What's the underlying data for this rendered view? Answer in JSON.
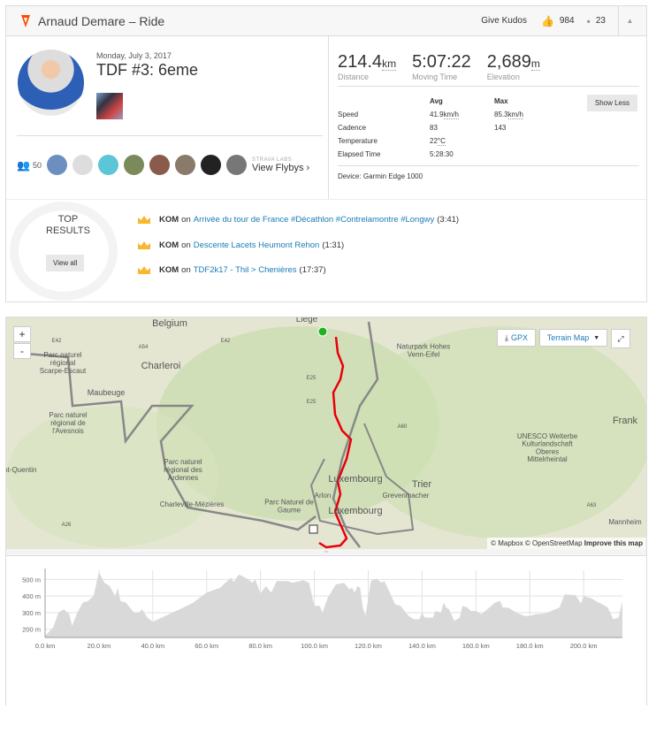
{
  "header": {
    "title": "Arnaud Demare – Ride",
    "give_kudos": "Give Kudos",
    "kudos_count": "984",
    "comment_count": "23",
    "brand_color": "#fc4c02"
  },
  "activity": {
    "date": "Monday, July 3, 2017",
    "title": "TDF #3: 6eme"
  },
  "flybys": {
    "athlete_count": "50",
    "labs": "STRAVA LABS",
    "view_label": "View Flybys"
  },
  "stats": {
    "primary": [
      {
        "value": "214.4",
        "unit": "km",
        "label": "Distance"
      },
      {
        "value": "5:07:22",
        "unit": "",
        "label": "Moving Time"
      },
      {
        "value": "2,689",
        "unit": "m",
        "label": "Elevation"
      }
    ],
    "col_avg": "Avg",
    "col_max": "Max",
    "rows": [
      {
        "label": "Speed",
        "avg": "41.9",
        "avg_unit": "km/h",
        "max": "85.3",
        "max_unit": "km/h"
      },
      {
        "label": "Cadence",
        "avg": "83",
        "avg_unit": "",
        "max": "143",
        "max_unit": ""
      },
      {
        "label": "Temperature",
        "avg": "22",
        "avg_unit": "°C",
        "max": "",
        "max_unit": ""
      },
      {
        "label": "Elapsed Time",
        "avg": "5:28:30",
        "avg_unit": "",
        "max": "",
        "max_unit": ""
      }
    ],
    "show_less": "Show Less",
    "device": "Device: Garmin Edge 1000"
  },
  "top_results": {
    "title_line1": "TOP",
    "title_line2": "RESULTS",
    "view_all": "View all",
    "items": [
      {
        "badge": "KOM",
        "on": "on",
        "segment": "Arrivée du tour de France #Décathlon #Contrelamontre #Longwy",
        "time": "(3:41)"
      },
      {
        "badge": "KOM",
        "on": "on",
        "segment": "Descente Lacets Heumont Rehon",
        "time": "(1:31)"
      },
      {
        "badge": "KOM",
        "on": "on",
        "segment": "TDF2k17 - Thil > Chenières",
        "time": "(17:37)"
      }
    ]
  },
  "map": {
    "zoom_in": "+",
    "zoom_out": "-",
    "gpx": "GPX",
    "map_type": "Terrain Map",
    "attribution_mapbox": "© Mapbox",
    "attribution_osm": "© OpenStreetMap",
    "improve": "Improve this map",
    "route_color": "#e8000b",
    "labels": [
      "Belgium",
      "Liège",
      "Charleroi",
      "Maubeuge",
      "Parc naturel régional de l'Avesnois",
      "Parc naturel régional des Ardennes",
      "Charleville-Mézières",
      "Parc Naturel de Gaume",
      "Luxembourg",
      "Luxembourg",
      "Arlon",
      "Grevenmacher",
      "Trier",
      "Naturpark Hohes Venn-Eifel",
      "UNESCO Welterbe Kulturlandschaft Oberes Mittelrheintal",
      "Frank",
      "Saint-Quentin",
      "Mannheim",
      "Parc naturel régional Scarpe-Escaut",
      "E42",
      "E42",
      "A54",
      "E25",
      "E25",
      "A60",
      "A63",
      "A26"
    ]
  },
  "chart_data": {
    "type": "area",
    "xlabel": "",
    "ylabel": "",
    "xlim": [
      0,
      214.4
    ],
    "ylim": [
      150,
      555
    ],
    "x_ticks": [
      "0.0 km",
      "20.0 km",
      "40.0 km",
      "60.0 km",
      "80.0 km",
      "100.0 km",
      "120.0 km",
      "140.0 km",
      "160.0 km",
      "180.0 km",
      "200.0 km"
    ],
    "y_ticks": [
      "200 m",
      "300 m",
      "400 m",
      "500 m"
    ],
    "grid": true,
    "fill_color": "#d9d9d9",
    "x": [
      0,
      3,
      5,
      7,
      9,
      10,
      12,
      14,
      16,
      18,
      20,
      22,
      24,
      26,
      27,
      28,
      30,
      33,
      35,
      36,
      38,
      40,
      42,
      50,
      55,
      60,
      65,
      69,
      70,
      72,
      75,
      77,
      78,
      80,
      82,
      84,
      86,
      90,
      92,
      96,
      98,
      100,
      102,
      103,
      105,
      108,
      111,
      113,
      114,
      115,
      116,
      117,
      118,
      119,
      121,
      123,
      125,
      126,
      128,
      130,
      132,
      135,
      137,
      139,
      140,
      141,
      144,
      145,
      147,
      148,
      149,
      150,
      152,
      154,
      155,
      157,
      158,
      160,
      162,
      165,
      167,
      169,
      170,
      172,
      175,
      178,
      180,
      182,
      186,
      188,
      191,
      193,
      197,
      199,
      200,
      203,
      205,
      207,
      209,
      211,
      213,
      214.4
    ],
    "y": [
      160,
      210,
      300,
      320,
      290,
      220,
      300,
      360,
      370,
      400,
      545,
      480,
      460,
      400,
      450,
      370,
      360,
      300,
      300,
      320,
      270,
      245,
      260,
      320,
      360,
      420,
      450,
      510,
      485,
      530,
      505,
      480,
      500,
      415,
      460,
      420,
      490,
      490,
      480,
      495,
      480,
      340,
      340,
      300,
      390,
      470,
      480,
      440,
      450,
      420,
      460,
      450,
      330,
      280,
      490,
      505,
      480,
      490,
      420,
      350,
      340,
      280,
      260,
      260,
      300,
      270,
      270,
      310,
      300,
      360,
      330,
      320,
      250,
      270,
      340,
      330,
      310,
      310,
      290,
      330,
      360,
      370,
      330,
      330,
      300,
      280,
      280,
      290,
      295,
      310,
      330,
      410,
      405,
      355,
      400,
      385,
      365,
      350,
      330,
      260,
      270,
      370
    ]
  }
}
